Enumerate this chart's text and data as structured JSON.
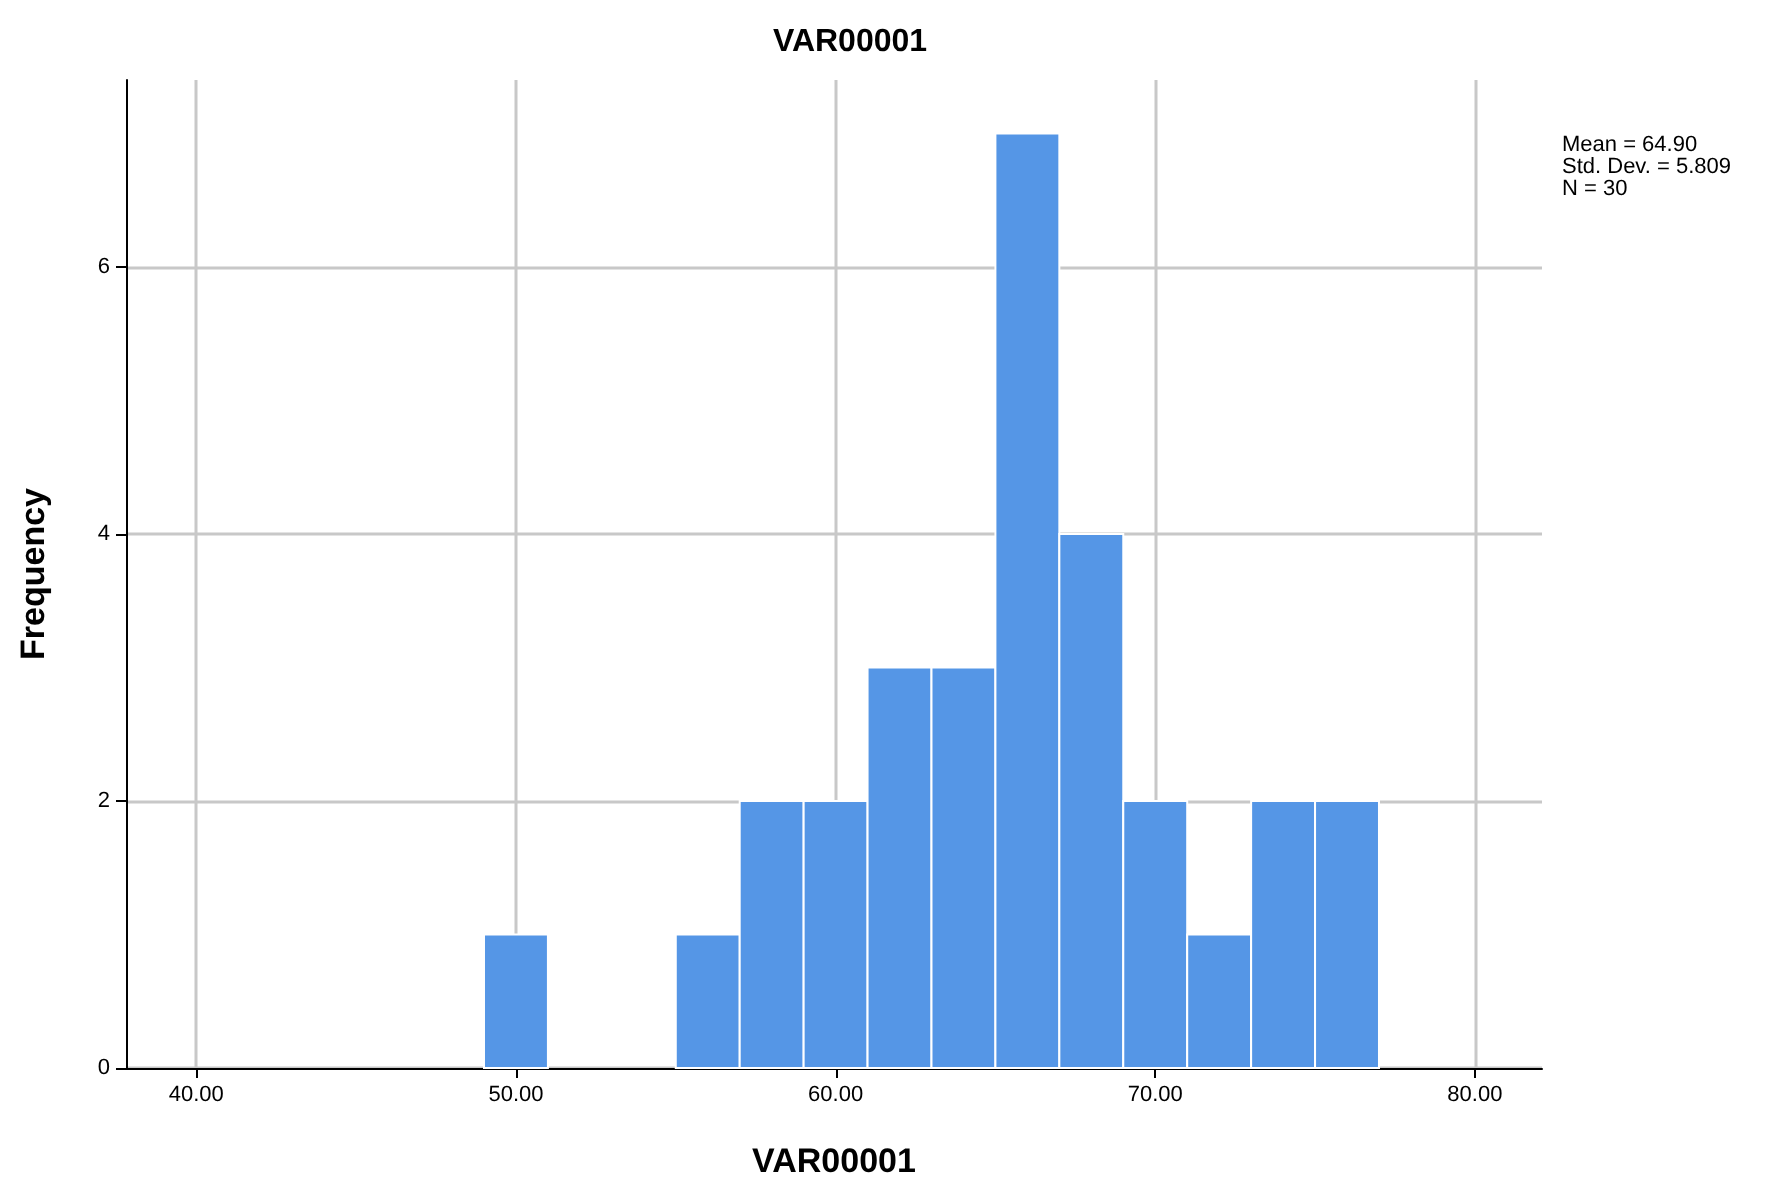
{
  "chart_data": {
    "type": "histogram",
    "title": "VAR00001",
    "xlabel": "VAR00001",
    "ylabel": "Frequency",
    "bins": [
      49,
      51,
      53,
      55,
      57,
      59,
      61,
      63,
      65,
      67,
      69,
      71,
      73,
      75,
      77
    ],
    "values": [
      1,
      0,
      0,
      1,
      2,
      2,
      3,
      3,
      7,
      4,
      2,
      1,
      2,
      2
    ],
    "color": "#5596e6",
    "xlim": [
      37.8,
      82.1
    ],
    "xticks": [
      {
        "value": 40,
        "label": "40.00"
      },
      {
        "value": 50,
        "label": "50.00"
      },
      {
        "value": 60,
        "label": "60.00"
      },
      {
        "value": 70,
        "label": "70.00"
      },
      {
        "value": 80,
        "label": "80.00"
      }
    ],
    "ylim": [
      0,
      7.4
    ],
    "yticks": [
      0,
      2,
      4,
      6
    ],
    "grid": true,
    "annotations": [
      "Mean = 64.90",
      "Std. Dev. = 5.809",
      "N = 30"
    ]
  }
}
